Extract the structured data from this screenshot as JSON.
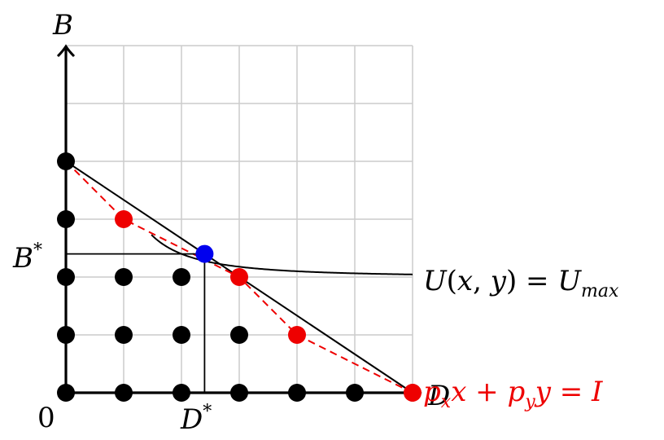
{
  "labels": {
    "y_axis": "B",
    "x_axis": "D",
    "origin": "0",
    "b_star_base": "B",
    "b_star_sup": "*",
    "d_star_base": "D",
    "d_star_sup": "*",
    "utility": {
      "u": "U",
      "open": "(",
      "x": "x",
      "comma": ", ",
      "y": "y",
      "close": ")",
      "equals": " = ",
      "umax": "U",
      "sub": "max"
    },
    "budget": {
      "p1": "p",
      "p1_sub": "x",
      "x": "x",
      "plus": " + ",
      "p2": "p",
      "p2_sub": "y",
      "y": "y",
      "equals": " = ",
      "income": "I"
    }
  },
  "colors": {
    "grid": "#cccccc",
    "axis": "#000000",
    "lattice_point": "#000000",
    "optimum_point": "#0000ee",
    "integer_optimum": "#ee0000",
    "budget_line": "#000000",
    "integer_frontier": "#ee0000",
    "indifference_curve": "#000000"
  },
  "grid": {
    "x_max": 6,
    "y_max": 6
  },
  "lattice_points": [
    [
      0,
      0
    ],
    [
      1,
      0
    ],
    [
      2,
      0
    ],
    [
      3,
      0
    ],
    [
      4,
      0
    ],
    [
      5,
      0
    ],
    [
      0,
      1
    ],
    [
      1,
      1
    ],
    [
      2,
      1
    ],
    [
      3,
      1
    ],
    [
      0,
      2
    ],
    [
      1,
      2
    ],
    [
      2,
      2
    ],
    [
      0,
      3
    ],
    [
      0,
      4
    ]
  ],
  "integer_frontier_points": [
    [
      1,
      3
    ],
    [
      3,
      2
    ],
    [
      4,
      1
    ],
    [
      6,
      0
    ]
  ],
  "integer_frontier_path": [
    [
      0,
      4
    ],
    [
      1,
      3
    ],
    [
      3,
      2
    ],
    [
      4,
      1
    ],
    [
      6,
      0
    ]
  ],
  "budget_line": [
    [
      0,
      4
    ],
    [
      6,
      0
    ]
  ],
  "optimum": {
    "x": 2.4,
    "y": 2.4
  },
  "indifference_curve": {
    "k": 1.6,
    "asymptote_y": 2.0,
    "x_from": 1.48,
    "x_to": 6
  }
}
